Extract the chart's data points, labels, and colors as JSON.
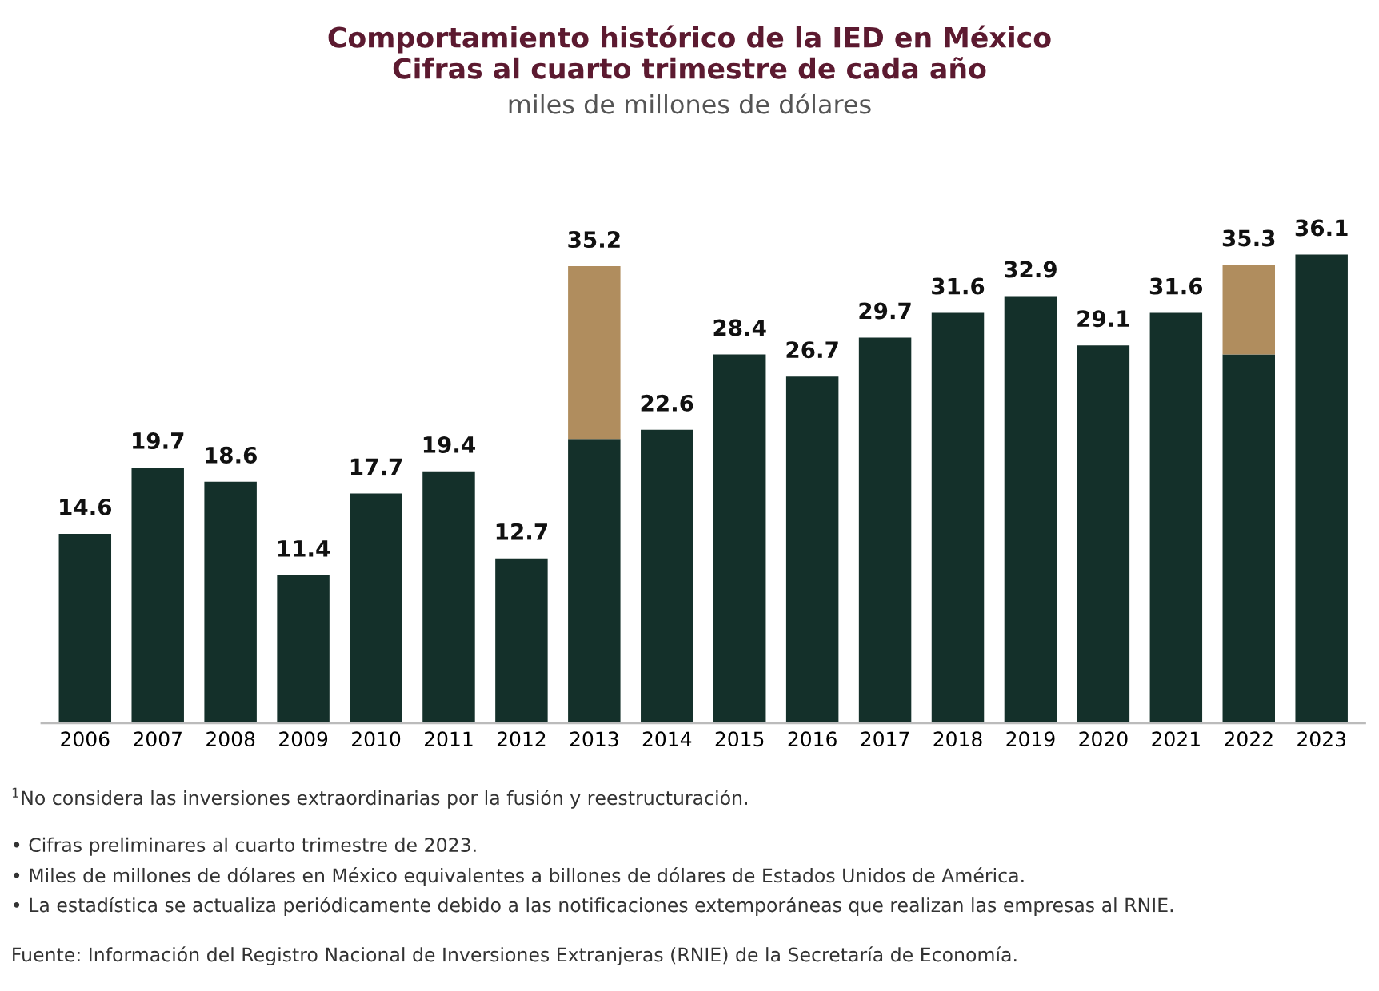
{
  "chart_data": {
    "type": "bar",
    "stacked": true,
    "title": "Comportamiento histórico de la IED en México\nCifras al cuarto trimestre de cada año",
    "subtitle": "miles de millones de dólares",
    "categories": [
      "2006",
      "2007",
      "2008",
      "2009",
      "2010",
      "2011",
      "2012",
      "2013",
      "2014",
      "2015",
      "2016",
      "2017",
      "2018",
      "2019",
      "2020",
      "2021",
      "2022",
      "2023"
    ],
    "series": [
      {
        "color": "#14302a",
        "values": [
          14.6,
          19.7,
          18.6,
          11.4,
          17.7,
          19.4,
          12.7,
          21.9,
          22.6,
          28.4,
          26.7,
          29.7,
          31.6,
          32.9,
          29.1,
          31.6,
          28.4,
          36.1
        ],
        "value_labels": [
          "14.6",
          "19.7",
          "18.6",
          "11.4",
          "17.7",
          "19.4",
          "12.7",
          null,
          "22.6",
          "28.4",
          "26.7",
          "29.7",
          "31.6",
          "32.9",
          "29.1",
          "31.6",
          null,
          "36.1"
        ]
      },
      {
        "color": "#b08d5e",
        "values": [
          null,
          null,
          null,
          null,
          null,
          null,
          null,
          13.3,
          null,
          null,
          null,
          null,
          null,
          null,
          null,
          null,
          6.9,
          null
        ]
      }
    ],
    "totals": [
      null,
      null,
      null,
      null,
      null,
      null,
      null,
      "35.2",
      null,
      null,
      null,
      null,
      null,
      null,
      null,
      null,
      "35.3",
      null
    ],
    "grid": false,
    "legend": false,
    "annotations": [
      "$^{1}$No considera las inversiones extraordinarias por la fusión y reestructuración.",
      "• Cifras preliminares al cuarto trimestre de 2023.",
      "• Miles de millones de dólares en México equivalentes a billones de dólares de Estados Unidos de América.",
      "• La estadística se actualiza periódicamente debido a las notificaciones extemporáneas que realizan las empresas al RNIE.",
      "Fuente: Información del Registro Nacional de Inversiones Extranjeras (RNIE) de la Secretaría de Economía."
    ]
  }
}
